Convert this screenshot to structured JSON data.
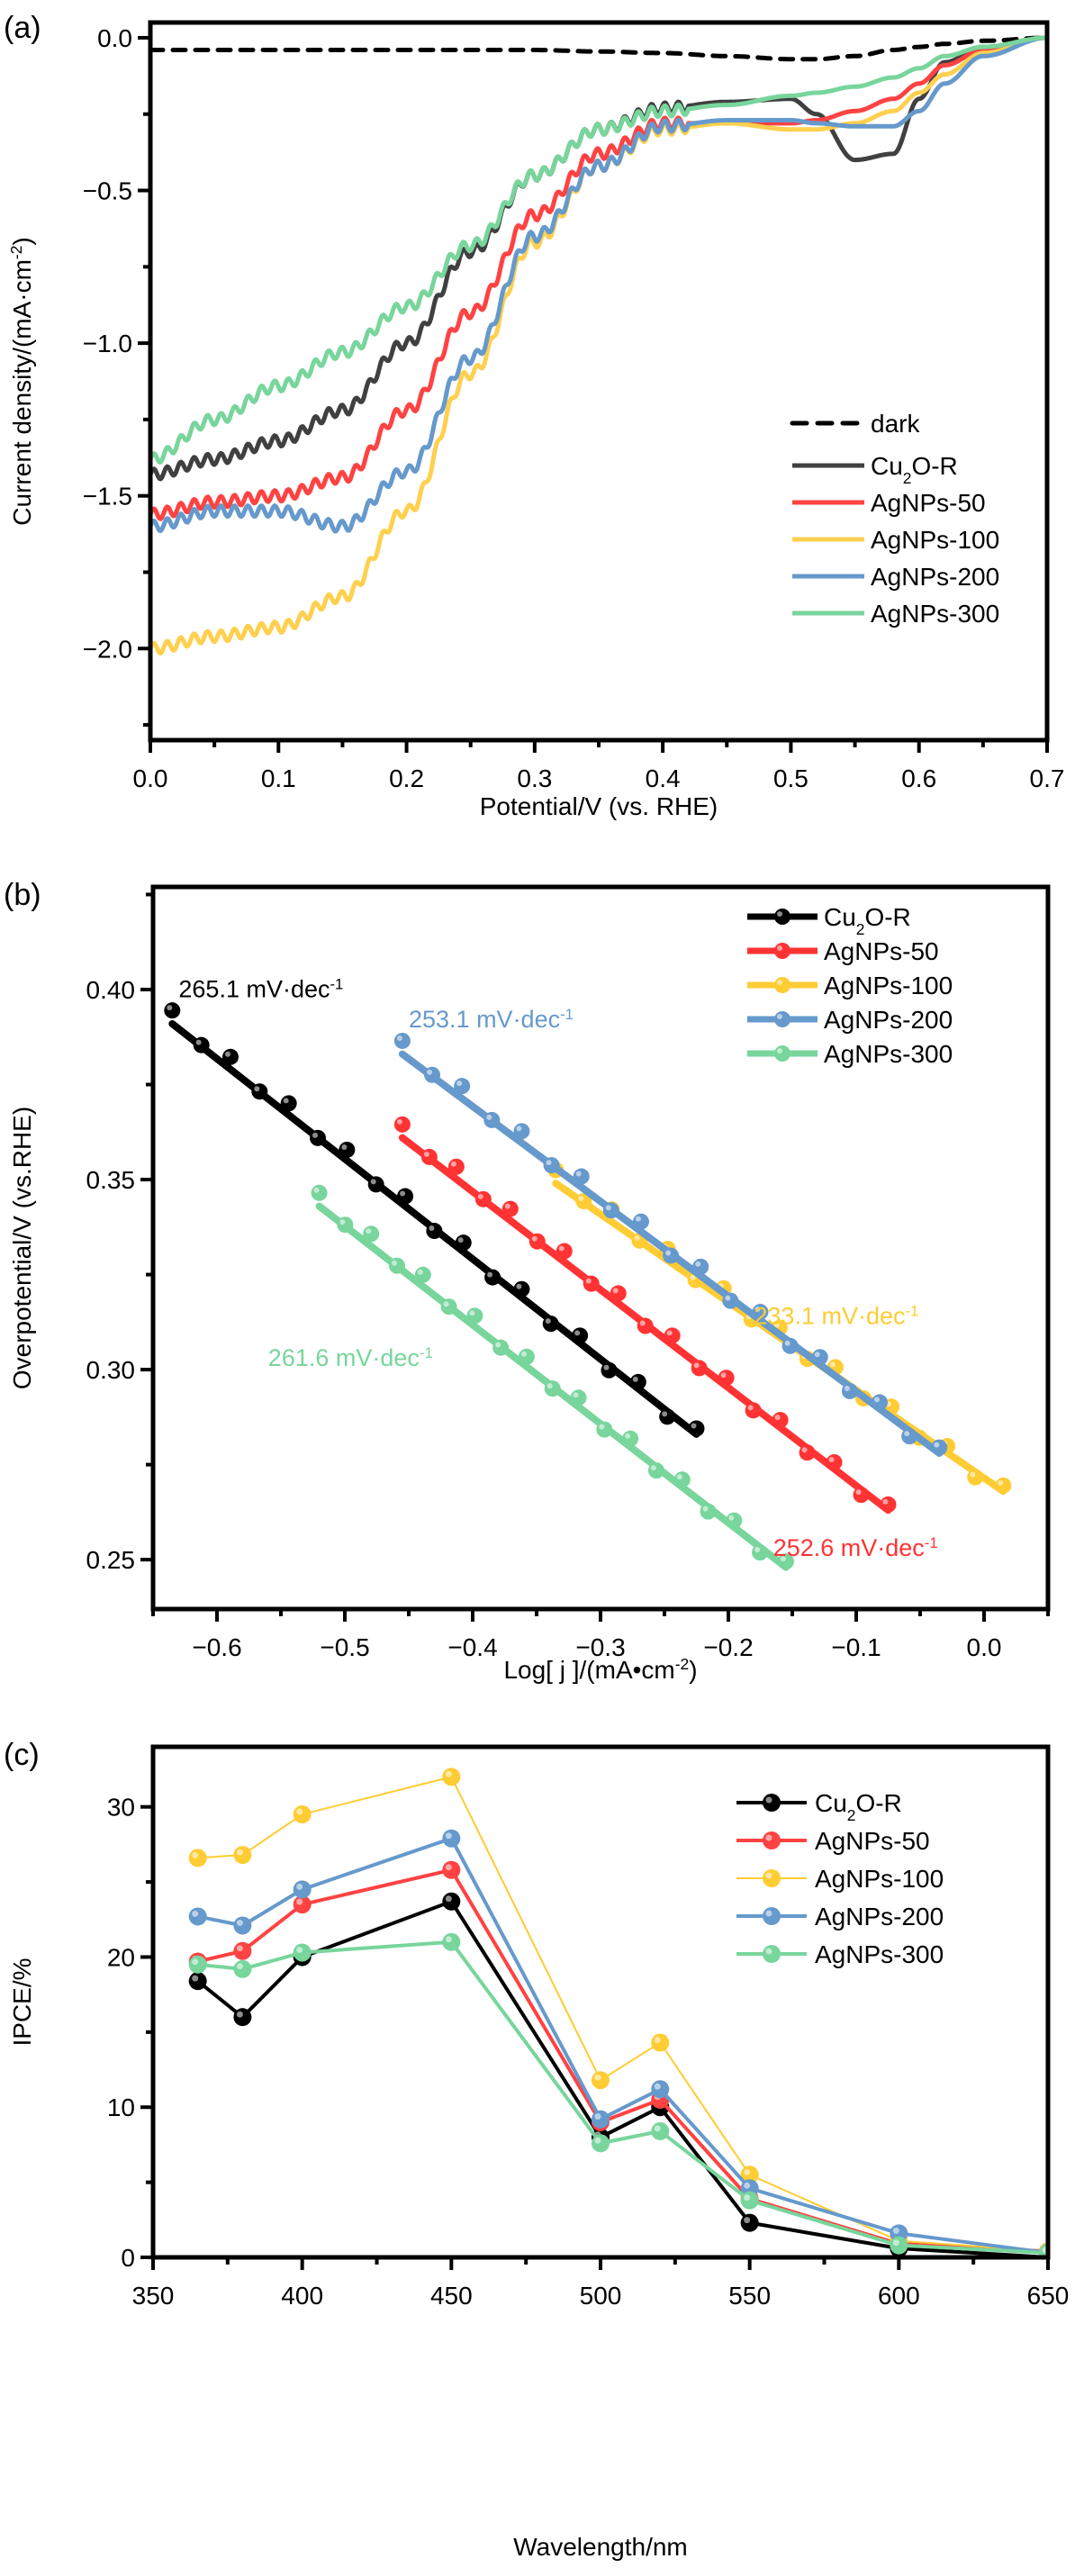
{
  "chart_data": [
    {
      "panel": "(a)",
      "type": "line",
      "title": "",
      "xlabel": "Potential/V (vs. RHE)",
      "ylabel": "Current density/(mA·cm⁻²)",
      "xlim": [
        0.0,
        0.7
      ],
      "ylim": [
        -2.3,
        0.05
      ],
      "xticks": [
        "0.0",
        "0.1",
        "0.2",
        "0.3",
        "0.4",
        "0.5",
        "0.6",
        "0.7"
      ],
      "yticks": [
        "0.0",
        "-0.5",
        "-1.0",
        "-1.5",
        "-2.0"
      ],
      "ytick_values": [
        0.0,
        -0.5,
        -1.0,
        -1.5,
        -2.0
      ],
      "xtick_values": [
        0.0,
        0.1,
        0.2,
        0.3,
        0.4,
        0.5,
        0.6,
        0.7
      ],
      "legend_position": "lower-right",
      "x": [
        0.0,
        0.05,
        0.1,
        0.15,
        0.2,
        0.25,
        0.3,
        0.35,
        0.4,
        0.45,
        0.5,
        0.52,
        0.55,
        0.58,
        0.6,
        0.62,
        0.65,
        0.7
      ],
      "series": [
        {
          "name": "dark",
          "color": "#000000",
          "dashed": true,
          "values": [
            -0.04,
            -0.04,
            -0.04,
            -0.04,
            -0.04,
            -0.04,
            -0.04,
            -0.045,
            -0.05,
            -0.06,
            -0.07,
            -0.07,
            -0.06,
            -0.04,
            -0.03,
            -0.02,
            -0.01,
            0.0
          ]
        },
        {
          "name": "Cu₂O-R",
          "color": "#404040",
          "dashed": false,
          "values": [
            -1.43,
            -1.38,
            -1.32,
            -1.22,
            -1.0,
            -0.7,
            -0.45,
            -0.3,
            -0.23,
            -0.21,
            -0.2,
            -0.25,
            -0.4,
            -0.38,
            -0.2,
            -0.08,
            -0.03,
            0.0
          ]
        },
        {
          "name": "AgNPs-50",
          "color": "#FF4242",
          "dashed": false,
          "values": [
            -1.56,
            -1.52,
            -1.5,
            -1.44,
            -1.22,
            -0.9,
            -0.58,
            -0.38,
            -0.28,
            -0.28,
            -0.28,
            -0.27,
            -0.24,
            -0.2,
            -0.15,
            -0.09,
            -0.04,
            0.0
          ]
        },
        {
          "name": "AgNPs-100",
          "color": "#FFD04F",
          "dashed": false,
          "values": [
            -2.0,
            -1.96,
            -1.93,
            -1.83,
            -1.55,
            -1.1,
            -0.67,
            -0.42,
            -0.3,
            -0.28,
            -0.3,
            -0.3,
            -0.28,
            -0.24,
            -0.18,
            -0.12,
            -0.05,
            0.0
          ]
        },
        {
          "name": "AgNPs-200",
          "color": "#6699CC",
          "dashed": false,
          "values": [
            -1.6,
            -1.55,
            -1.55,
            -1.6,
            -1.42,
            -1.05,
            -0.65,
            -0.42,
            -0.29,
            -0.27,
            -0.27,
            -0.28,
            -0.29,
            -0.29,
            -0.24,
            -0.15,
            -0.06,
            0.0
          ]
        },
        {
          "name": "AgNPs-300",
          "color": "#78D59C",
          "dashed": false,
          "values": [
            -1.38,
            -1.25,
            -1.14,
            -1.03,
            -0.88,
            -0.68,
            -0.45,
            -0.3,
            -0.24,
            -0.22,
            -0.19,
            -0.18,
            -0.16,
            -0.13,
            -0.1,
            -0.06,
            -0.03,
            0.0
          ]
        }
      ]
    },
    {
      "panel": "(b)",
      "type": "scatter",
      "title": "",
      "xlabel": "Log[ j ]/(mA•cm⁻²)",
      "ylabel": "Overpotential/V (vs.RHE)",
      "xlim": [
        -0.65,
        0.05
      ],
      "ylim": [
        0.237,
        0.427
      ],
      "xticks": [
        "-0.6",
        "-0.5",
        "-0.4",
        "-0.3",
        "-0.2",
        "-0.1",
        "0.0"
      ],
      "xtick_values": [
        -0.6,
        -0.5,
        -0.4,
        -0.3,
        -0.2,
        -0.1,
        0.0
      ],
      "yticks": [
        "0.25",
        "0.30",
        "0.35",
        "0.40"
      ],
      "ytick_values": [
        0.25,
        0.3,
        0.35,
        0.4
      ],
      "legend_position": "top-right",
      "series": [
        {
          "name": "Cu₂O-R",
          "color": "#000000",
          "x_start": -0.635,
          "x_end": -0.225,
          "y_start": 0.393,
          "y_end": 0.283,
          "points": 19,
          "annotation": "265.1 mV·dec⁻¹",
          "annotation_x": -0.63,
          "annotation_y": 0.398
        },
        {
          "name": "AgNPs-50",
          "color": "#FF3333",
          "x_start": -0.455,
          "x_end": -0.075,
          "y_start": 0.363,
          "y_end": 0.263,
          "points": 19,
          "annotation": "252.6 mV·dec⁻¹",
          "annotation_x": -0.165,
          "annotation_y": 0.251
        },
        {
          "name": "AgNPs-100",
          "color": "#FFCC33",
          "x_start": -0.335,
          "x_end": 0.015,
          "y_start": 0.351,
          "y_end": 0.268,
          "points": 17,
          "annotation": "233.1 mV·dec⁻¹",
          "annotation_x": -0.18,
          "annotation_y": 0.312
        },
        {
          "name": "AgNPs-200",
          "color": "#6699CC",
          "x_start": -0.455,
          "x_end": -0.035,
          "y_start": 0.385,
          "y_end": 0.278,
          "points": 19,
          "annotation": "253.1 mV·dec⁻¹",
          "annotation_x": -0.45,
          "annotation_y": 0.39
        },
        {
          "name": "AgNPs-300",
          "color": "#78D59C",
          "x_start": -0.52,
          "x_end": -0.155,
          "y_start": 0.345,
          "y_end": 0.248,
          "points": 19,
          "annotation": "261.6 mV·dec⁻¹",
          "annotation_x": -0.56,
          "annotation_y": 0.301
        }
      ]
    },
    {
      "panel": "(c)",
      "type": "line",
      "title": "",
      "xlabel": "Wavelength/nm",
      "ylabel": "IPCE/%",
      "xlim": [
        350,
        650
      ],
      "ylim": [
        0,
        34
      ],
      "xticks": [
        "350",
        "400",
        "450",
        "500",
        "550",
        "600",
        "650"
      ],
      "xtick_values": [
        350,
        400,
        450,
        500,
        550,
        600,
        650
      ],
      "yticks": [
        "0",
        "10",
        "20",
        "30"
      ],
      "ytick_values": [
        0,
        10,
        20,
        30
      ],
      "legend_position": "top-right",
      "x": [
        365,
        380,
        400,
        450,
        500,
        520,
        550,
        600,
        650
      ],
      "series": [
        {
          "name": "Cu₂O-R",
          "color": "#000000",
          "values": [
            18.4,
            16.0,
            20.0,
            23.7,
            8.0,
            10.0,
            2.3,
            0.6,
            0.0
          ]
        },
        {
          "name": "AgNPs-50",
          "color": "#FF4242",
          "values": [
            19.7,
            20.4,
            23.5,
            25.8,
            9.0,
            10.5,
            3.9,
            0.9,
            0.4
          ]
        },
        {
          "name": "AgNPs-100",
          "color": "#FFCC33",
          "values": [
            26.6,
            26.8,
            29.5,
            32.0,
            11.8,
            14.3,
            5.5,
            1.1,
            0.4
          ]
        },
        {
          "name": "AgNPs-200",
          "color": "#6699CC",
          "values": [
            22.7,
            22.1,
            24.5,
            27.9,
            9.2,
            11.2,
            4.6,
            1.6,
            0.3
          ]
        },
        {
          "name": "AgNPs-300",
          "color": "#78D59C",
          "values": [
            19.5,
            19.2,
            20.3,
            21.0,
            7.6,
            8.4,
            3.8,
            0.8,
            0.3
          ]
        }
      ]
    }
  ]
}
